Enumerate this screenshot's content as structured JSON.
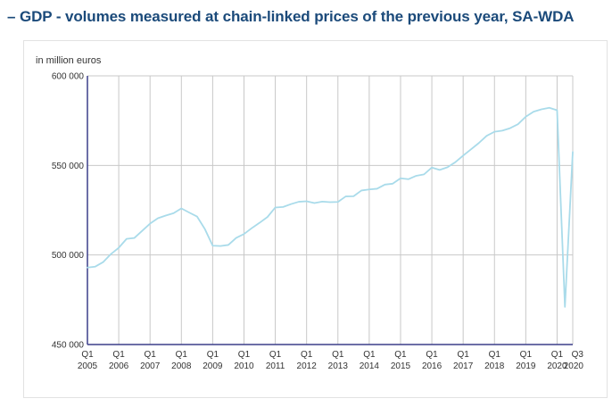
{
  "page": {
    "title": "– GDP - volumes measured at chain-linked prices of the previous year, SA-WDA"
  },
  "chart_data": {
    "type": "line",
    "title": "GDP - volumes measured at chain-linked prices of the previous year, SA-WDA",
    "ylabel": "in million euros",
    "ylim": [
      450000,
      600000
    ],
    "yticks": [
      {
        "value": 450000,
        "label": "450 000"
      },
      {
        "value": 500000,
        "label": "500 000"
      },
      {
        "value": 550000,
        "label": "550 000"
      },
      {
        "value": 600000,
        "label": "600 000"
      }
    ],
    "xticks": [
      {
        "q": "Q1",
        "year": "2005"
      },
      {
        "q": "Q1",
        "year": "2006"
      },
      {
        "q": "Q1",
        "year": "2007"
      },
      {
        "q": "Q1",
        "year": "2008"
      },
      {
        "q": "Q1",
        "year": "2009"
      },
      {
        "q": "Q1",
        "year": "2010"
      },
      {
        "q": "Q1",
        "year": "2011"
      },
      {
        "q": "Q1",
        "year": "2012"
      },
      {
        "q": "Q1",
        "year": "2013"
      },
      {
        "q": "Q1",
        "year": "2014"
      },
      {
        "q": "Q1",
        "year": "2015"
      },
      {
        "q": "Q1",
        "year": "2016"
      },
      {
        "q": "Q1",
        "year": "2017"
      },
      {
        "q": "Q1",
        "year": "2018"
      },
      {
        "q": "Q1",
        "year": "2019"
      },
      {
        "q": "Q1",
        "year": "2020"
      },
      {
        "q": "Q3",
        "year": "2020"
      }
    ],
    "grid": true,
    "colors": {
      "line": "#a9dbea",
      "grid": "#c8c8c8",
      "axis": "#3c3f8a"
    },
    "series": [
      {
        "x": [
          "2005-Q1",
          "2005-Q2",
          "2005-Q3",
          "2005-Q4",
          "2006-Q1",
          "2006-Q2",
          "2006-Q3",
          "2006-Q4",
          "2007-Q1",
          "2007-Q2",
          "2007-Q3",
          "2007-Q4",
          "2008-Q1",
          "2008-Q2",
          "2008-Q3",
          "2008-Q4",
          "2009-Q1",
          "2009-Q2",
          "2009-Q3",
          "2009-Q4",
          "2010-Q1",
          "2010-Q2",
          "2010-Q3",
          "2010-Q4",
          "2011-Q1",
          "2011-Q2",
          "2011-Q3",
          "2011-Q4",
          "2012-Q1",
          "2012-Q2",
          "2012-Q3",
          "2012-Q4",
          "2013-Q1",
          "2013-Q2",
          "2013-Q3",
          "2013-Q4",
          "2014-Q1",
          "2014-Q2",
          "2014-Q3",
          "2014-Q4",
          "2015-Q1",
          "2015-Q2",
          "2015-Q3",
          "2015-Q4",
          "2016-Q1",
          "2016-Q2",
          "2016-Q3",
          "2016-Q4",
          "2017-Q1",
          "2017-Q2",
          "2017-Q3",
          "2017-Q4",
          "2018-Q1",
          "2018-Q2",
          "2018-Q3",
          "2018-Q4",
          "2019-Q1",
          "2019-Q2",
          "2019-Q3",
          "2019-Q4",
          "2020-Q1",
          "2020-Q2",
          "2020-Q3"
        ],
        "values": [
          493000,
          493500,
          496000,
          500500,
          504000,
          509000,
          509500,
          513500,
          517500,
          520500,
          522000,
          523300,
          526000,
          523700,
          521500,
          514500,
          505200,
          505000,
          505600,
          509500,
          511700,
          515000,
          518000,
          521200,
          526500,
          526800,
          528400,
          529700,
          530000,
          529000,
          529800,
          529500,
          529600,
          532700,
          532800,
          536000,
          536600,
          537000,
          539300,
          539800,
          542800,
          542300,
          544200,
          545000,
          548800,
          547500,
          549000,
          551800,
          555500,
          559000,
          562500,
          566500,
          568800,
          569400,
          570800,
          573000,
          577200,
          580000,
          581300,
          582200,
          580800,
          471000,
          557500
        ]
      }
    ]
  }
}
